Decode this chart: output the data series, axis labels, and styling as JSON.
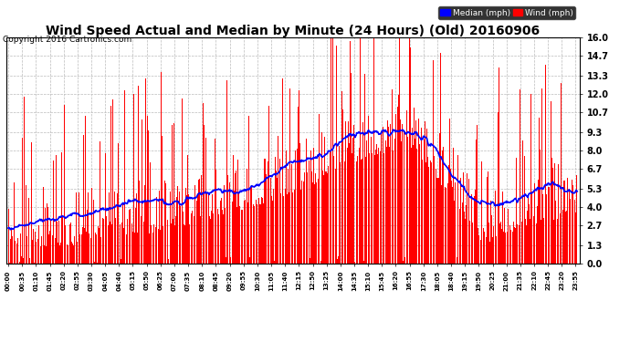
{
  "title": "Wind Speed Actual and Median by Minute (24 Hours) (Old) 20160906",
  "copyright": "Copyright 2016 Cartronics.com",
  "legend_median_label": "Median (mph)",
  "legend_wind_label": "Wind (mph)",
  "legend_median_color": "#0000ff",
  "legend_wind_color": "#ff0000",
  "legend_bg_color": "#000000",
  "legend_text_color": "#ffffff",
  "yticks": [
    0.0,
    1.3,
    2.7,
    4.0,
    5.3,
    6.7,
    8.0,
    9.3,
    10.7,
    12.0,
    13.3,
    14.7,
    16.0
  ],
  "ymax": 16.0,
  "ymin": 0.0,
  "background_color": "#ffffff",
  "plot_bg_color": "#ffffff",
  "grid_color": "#bbbbbb",
  "title_fontsize": 10,
  "copyright_fontsize": 6.5,
  "bar_color": "#ff0000",
  "median_color": "#0000ff",
  "median_linewidth": 1.2,
  "seed": 12345
}
